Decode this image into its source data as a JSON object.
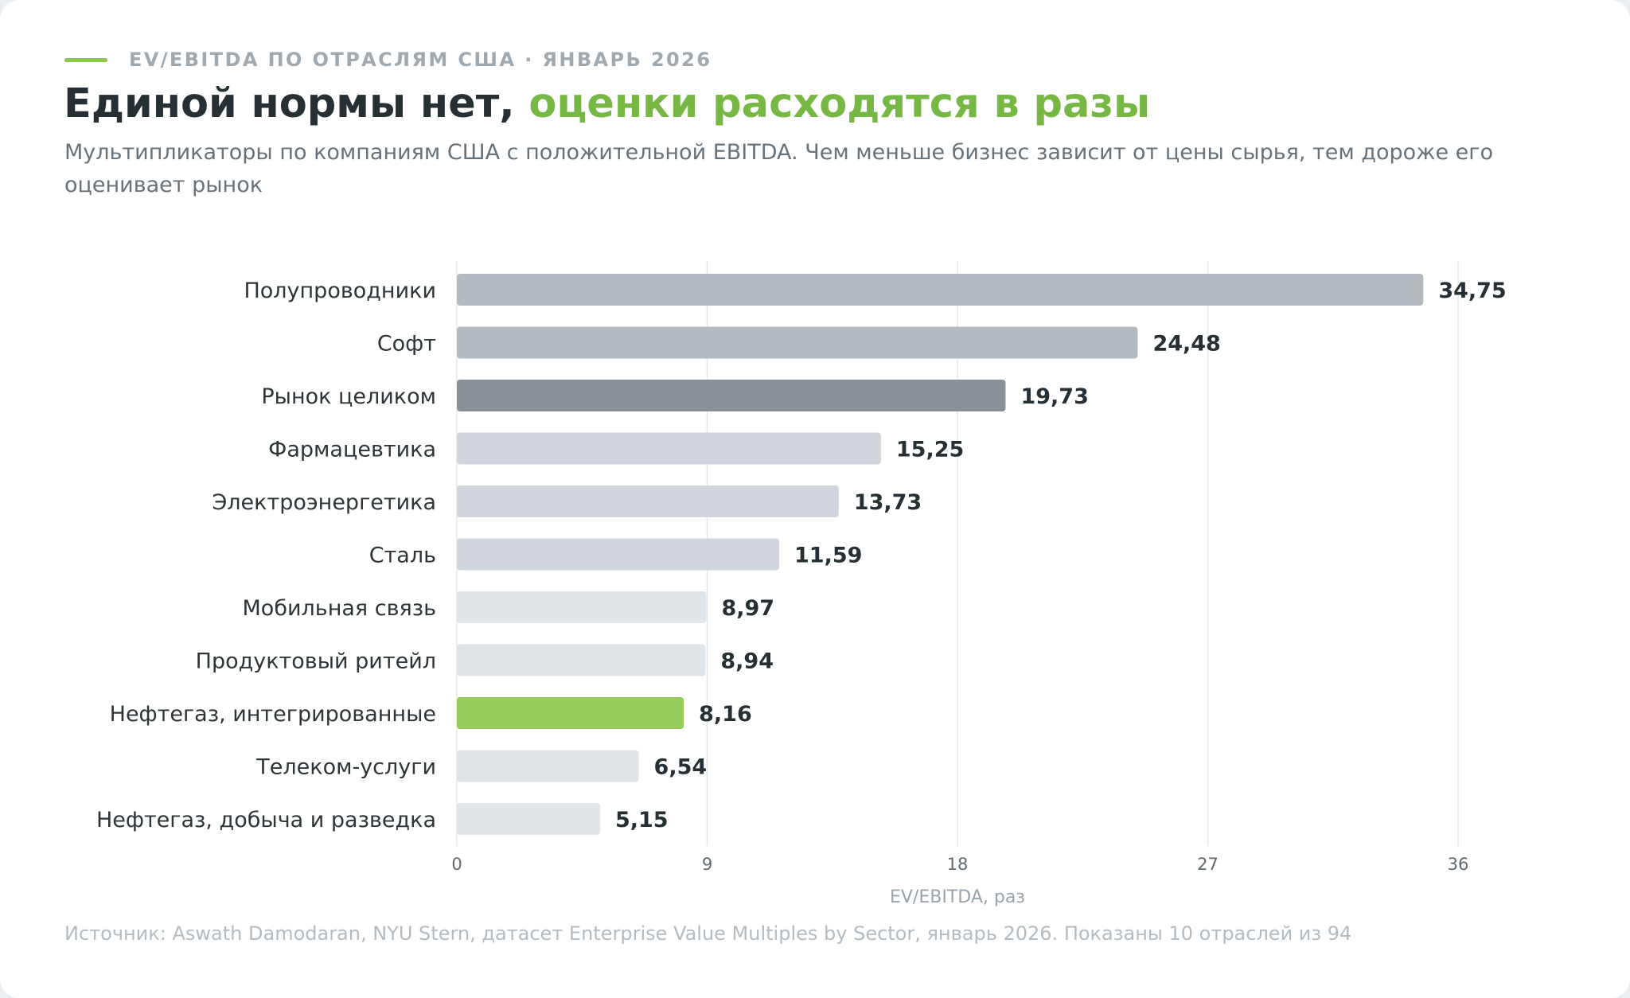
{
  "header": {
    "kicker": "EV/EBITDA ПО ОТРАСЛЯМ США · ЯНВАРЬ 2026",
    "title_main": "Единой нормы нет, ",
    "title_accent": "оценки расходятся в разы",
    "subtitle": "Мультипликаторы по компаниям США с положительной EBITDA. Чем меньше бизнес зависит от цены сырья, тем дороже его оценивает рынок"
  },
  "footer": {
    "source": "Источник: Aswath Damodaran, NYU Stern, датасет Enterprise Value Multiples by Sector, январь 2026. Показаны 10 отраслей из 94"
  },
  "colors": {
    "accent": "#76b843",
    "highlight_bar": "#95cd5a",
    "market_bar": "#8a9196",
    "bar_tier_1": "#b3bbc1",
    "bar_tier_2": "#d0d6db",
    "bar_tier_3": "#dfe5e8",
    "grid": "#e6e9eb"
  },
  "chart_data": {
    "type": "bar",
    "orientation": "horizontal",
    "categories": [
      "Полупроводники",
      "Софт",
      "Рынок целиком",
      "Фармацевтика",
      "Электроэнергетика",
      "Сталь",
      "Мобильная связь",
      "Продуктовый ритейл",
      "Нефтегаз, интегрированные",
      "Телеком-услуги",
      "Нефтегаз, добыча и разведка"
    ],
    "values": [
      34.75,
      24.48,
      19.73,
      15.25,
      13.73,
      11.59,
      8.97,
      8.94,
      8.16,
      6.54,
      5.15
    ],
    "value_labels": [
      "34,75",
      "24,48",
      "19,73",
      "15,25",
      "13,73",
      "11,59",
      "8,97",
      "8,94",
      "8,16",
      "6,54",
      "5,15"
    ],
    "bar_colors": [
      "#b3bbc1",
      "#b3bbc1",
      "#8a9196",
      "#d0d6db",
      "#d0d6db",
      "#d0d6db",
      "#dfe5e8",
      "#dfe5e8",
      "#95cd5a",
      "#dfe5e8",
      "#dfe5e8"
    ],
    "xlabel": "EV/EBITDA, раз",
    "xlim": [
      0,
      36
    ],
    "xticks": [
      0,
      9,
      18,
      27,
      36
    ],
    "xtick_labels": [
      "0",
      "9",
      "18",
      "27",
      "36"
    ],
    "grid": "vertical",
    "legend": "none"
  }
}
